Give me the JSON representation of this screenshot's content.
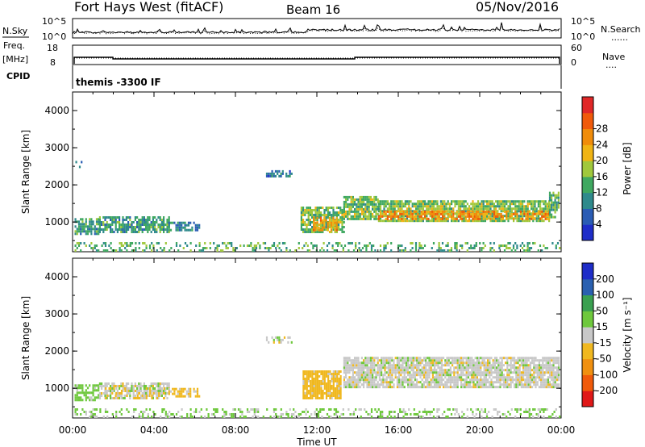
{
  "header": {
    "title": "Fort Hays West (fitACF)",
    "beam": "Beam 16",
    "date": "05/Nov/2016"
  },
  "strips": {
    "nsky_label": "N.Sky",
    "nsearch_label": "N.Search",
    "nsearch_line": "......",
    "count_ticks_left": [
      "10^5",
      "10^0"
    ],
    "count_ticks_right": [
      "10^5",
      "10^0"
    ],
    "freq_label": "Freq.",
    "freq_unit": "[MHz]",
    "freq_ticks": [
      "18",
      "8"
    ],
    "nave_label": "Nave",
    "nave_line": "....",
    "nave_ticks": [
      "60",
      "0"
    ],
    "cpid_label": "CPID",
    "cpid_value": "themis -3300 IF"
  },
  "chart_data": [
    {
      "type": "heatmap",
      "name": "power",
      "ylabel": "Slant Range [km]",
      "yticks": [
        "1000",
        "2000",
        "3000",
        "4000"
      ],
      "ylim": [
        200,
        4500
      ],
      "xlim": [
        0,
        24
      ],
      "colorbar": {
        "label": "Power [dB]",
        "ticks": [
          "4",
          "8",
          "12",
          "16",
          "20",
          "24",
          "28"
        ],
        "colors": [
          "#1e2dc8",
          "#2a5cb4",
          "#2f8a8c",
          "#3fa860",
          "#a0c83c",
          "#f0b414",
          "#f08c0a",
          "#f05a0a",
          "#e02828"
        ]
      },
      "bands": [
        {
          "t0": 0.05,
          "t1": 0.4,
          "r0": 2450,
          "r1": 2700,
          "value": 8,
          "density": 0.2
        },
        {
          "t0": 0.1,
          "t1": 1.3,
          "r0": 650,
          "r1": 1050,
          "value": 12,
          "density": 0.7
        },
        {
          "t0": 1.3,
          "t1": 4.7,
          "r0": 700,
          "r1": 1150,
          "value": 12,
          "density": 0.75
        },
        {
          "t0": 4.7,
          "t1": 6.2,
          "r0": 750,
          "r1": 1000,
          "value": 10,
          "density": 0.6
        },
        {
          "t0": 9.5,
          "t1": 10.8,
          "r0": 2200,
          "r1": 2350,
          "value": 8,
          "density": 0.5
        },
        {
          "t0": 11.2,
          "t1": 13.3,
          "r0": 700,
          "r1": 1400,
          "value": 16,
          "density": 0.8
        },
        {
          "t0": 11.8,
          "t1": 13.0,
          "r0": 750,
          "r1": 1100,
          "value": 24,
          "density": 0.7
        },
        {
          "t0": 13.3,
          "t1": 15.0,
          "r0": 1050,
          "r1": 1700,
          "value": 16,
          "density": 0.85
        },
        {
          "t0": 15.0,
          "t1": 23.4,
          "r0": 1000,
          "r1": 1550,
          "value": 16,
          "density": 0.85
        },
        {
          "t0": 15.0,
          "t1": 23.4,
          "r0": 1050,
          "r1": 1250,
          "value": 26,
          "density": 0.6
        },
        {
          "t0": 23.4,
          "t1": 23.9,
          "r0": 1100,
          "r1": 1800,
          "value": 14,
          "density": 0.7
        },
        {
          "t0": 0.1,
          "t1": 23.9,
          "r0": 200,
          "r1": 400,
          "value": 14,
          "density": 0.3
        }
      ]
    },
    {
      "type": "heatmap",
      "name": "velocity",
      "ylabel": "Slant Range [km]",
      "yticks": [
        "1000",
        "2000",
        "3000",
        "4000"
      ],
      "ylim": [
        200,
        4500
      ],
      "xlim": [
        0,
        24
      ],
      "xticks": [
        "00:00",
        "04:00",
        "08:00",
        "12:00",
        "16:00",
        "20:00",
        "00:00"
      ],
      "xlabel": "Time UT",
      "colorbar": {
        "label": "Velocity [m s⁻¹]",
        "ticks": [
          "-200",
          "-100",
          "-50",
          "-15",
          "15",
          "50",
          "100",
          "200"
        ],
        "colors": [
          "#e01818",
          "#f05a0a",
          "#f09010",
          "#f0b820",
          "#c8c8c8",
          "#6ec83c",
          "#3aa050",
          "#2a60b0",
          "#1e2dc8"
        ]
      },
      "bands": [
        {
          "t0": 0.1,
          "t1": 1.3,
          "r0": 650,
          "r1": 1050,
          "value": 30,
          "density": 0.75
        },
        {
          "t0": 1.3,
          "t1": 4.7,
          "r0": 700,
          "r1": 1150,
          "value": 0,
          "density": 0.7
        },
        {
          "t0": 1.5,
          "t1": 4.5,
          "r0": 700,
          "r1": 1000,
          "value": -25,
          "density": 0.3
        },
        {
          "t0": 4.7,
          "t1": 6.2,
          "r0": 750,
          "r1": 1000,
          "value": -20,
          "density": 0.5
        },
        {
          "t0": 9.5,
          "t1": 10.8,
          "r0": 2200,
          "r1": 2350,
          "value": 0,
          "density": 0.5
        },
        {
          "t0": 11.3,
          "t1": 13.2,
          "r0": 700,
          "r1": 1450,
          "value": -30,
          "density": 0.85
        },
        {
          "t0": 13.3,
          "t1": 23.9,
          "r0": 1000,
          "r1": 1800,
          "value": 0,
          "density": 0.85
        },
        {
          "t0": 0.1,
          "t1": 23.9,
          "r0": 200,
          "r1": 400,
          "value": 20,
          "density": 0.3
        }
      ]
    }
  ]
}
